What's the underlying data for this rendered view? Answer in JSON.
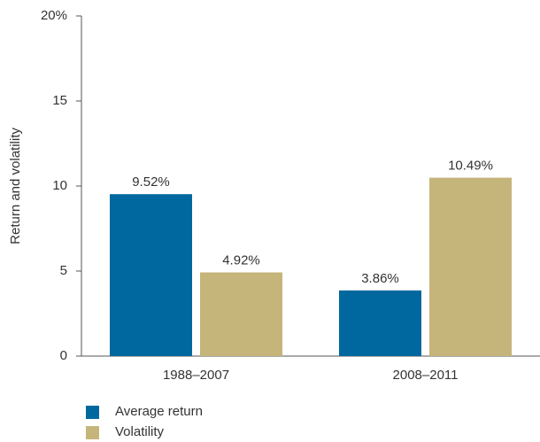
{
  "chart_data": {
    "type": "bar",
    "y_label": "Return and volatility",
    "categories": [
      "1988–2007",
      "2008–2011"
    ],
    "series": [
      {
        "name": "Average return",
        "color": "#00689f",
        "values": [
          9.52,
          3.86
        ],
        "value_labels": [
          "9.52%",
          "3.86%"
        ]
      },
      {
        "name": "Volatility",
        "color": "#c5b57a",
        "values": [
          4.92,
          10.49
        ],
        "value_labels": [
          "4.92%",
          "10.49%"
        ]
      }
    ],
    "ylim": [
      0,
      20
    ],
    "yticks": [
      0,
      5,
      10,
      15,
      {
        "value": 20,
        "label": "20%"
      }
    ],
    "grid": false,
    "legend": "bottom-left"
  }
}
